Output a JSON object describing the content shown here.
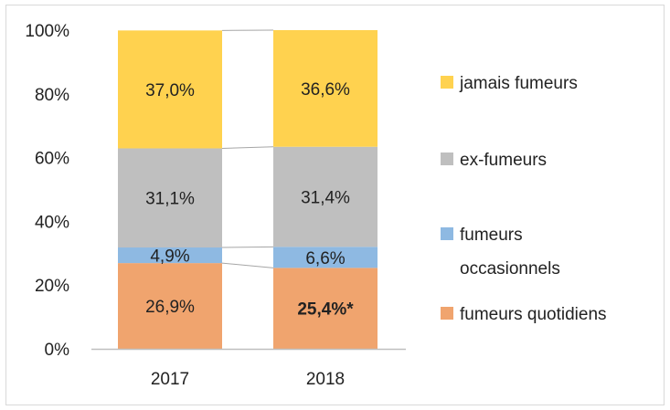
{
  "chart_data": {
    "type": "bar",
    "stacked": true,
    "categories": [
      "2017",
      "2018"
    ],
    "ylim": [
      0,
      100
    ],
    "yticks": [
      "0%",
      "20%",
      "40%",
      "60%",
      "80%",
      "100%"
    ],
    "series": [
      {
        "name": "fumeurs quotidiens",
        "values": [
          26.9,
          25.4
        ],
        "labels": [
          "26,9%",
          "25,4%*"
        ],
        "bold": [
          false,
          true
        ],
        "color": "#F0A46E"
      },
      {
        "name": "fumeurs occasionnels",
        "values": [
          4.9,
          6.6
        ],
        "labels": [
          "4,9%",
          "6,6%"
        ],
        "bold": [
          false,
          false
        ],
        "color": "#8EB9E2"
      },
      {
        "name": "ex-fumeurs",
        "values": [
          31.1,
          31.4
        ],
        "labels": [
          "31,1%",
          "31,4%"
        ],
        "bold": [
          false,
          false
        ],
        "color": "#BFBFBF"
      },
      {
        "name": "jamais fumeurs",
        "values": [
          37.0,
          36.6
        ],
        "labels": [
          "37,0%",
          "36,6%"
        ],
        "bold": [
          false,
          false
        ],
        "color": "#FFD24F"
      }
    ],
    "legend_entries": [
      "jamais fumeurs",
      "ex-fumeurs",
      "fumeurs occasionnels",
      "fumeurs quotidiens"
    ],
    "legend_position": "right",
    "grid": false
  }
}
